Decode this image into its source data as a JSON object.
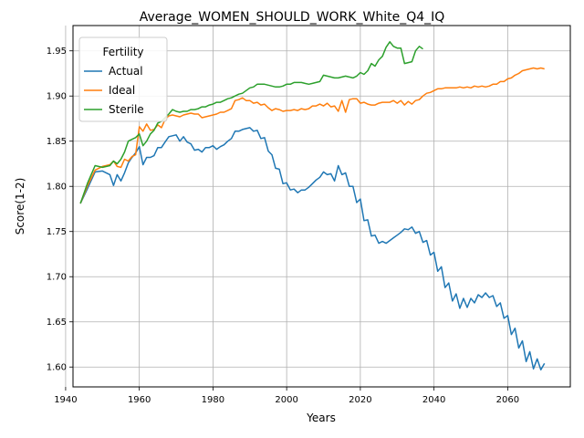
{
  "chart_data": {
    "type": "line",
    "title": "Average_WOMEN_SHOULD_WORK_White_Q4_IQ",
    "xlabel": "Years",
    "ylabel": "Score(1-2)",
    "xlim": [
      1942,
      2077
    ],
    "ylim": [
      1.578,
      1.978
    ],
    "xticks": [
      1940,
      1960,
      1980,
      2000,
      2020,
      2040,
      2060
    ],
    "yticks": [
      1.6,
      1.65,
      1.7,
      1.75,
      1.8,
      1.85,
      1.9,
      1.95
    ],
    "grid": true,
    "legend": {
      "title": "Fertility",
      "position": "upper-left"
    },
    "series": [
      {
        "name": "Actual",
        "color": "#1f77b4",
        "x": [
          1944,
          1946,
          1948,
          1950,
          1952,
          1953,
          1954,
          1955,
          1956,
          1957,
          1958,
          1959,
          1960,
          1961,
          1962,
          1963,
          1964,
          1965,
          1966,
          1967,
          1968,
          1969,
          1970,
          1971,
          1972,
          1973,
          1974,
          1975,
          1976,
          1977,
          1978,
          1979,
          1980,
          1981,
          1982,
          1983,
          1984,
          1985,
          1986,
          1987,
          1988,
          1989,
          1990,
          1991,
          1992,
          1993,
          1994,
          1995,
          1996,
          1997,
          1998,
          1999,
          2000,
          2001,
          2002,
          2003,
          2004,
          2005,
          2006,
          2007,
          2008,
          2009,
          2010,
          2011,
          2012,
          2013,
          2014,
          2015,
          2016,
          2017,
          2018,
          2019,
          2020,
          2021,
          2022,
          2023,
          2024,
          2025,
          2026,
          2027,
          2028,
          2029,
          2030,
          2031,
          2032,
          2033,
          2034,
          2035,
          2036,
          2037,
          2038,
          2039,
          2040,
          2041,
          2042,
          2043,
          2044,
          2045,
          2046,
          2047,
          2048,
          2049,
          2050,
          2051,
          2052,
          2053,
          2054,
          2055,
          2056,
          2057,
          2058,
          2059,
          2060,
          2061,
          2062,
          2063,
          2064,
          2065,
          2066,
          2067,
          2068,
          2069,
          2070
        ],
        "values": [
          1.781,
          1.798,
          1.816,
          1.817,
          1.813,
          1.801,
          1.813,
          1.806,
          1.815,
          1.826,
          1.832,
          1.837,
          1.844,
          1.824,
          1.832,
          1.832,
          1.834,
          1.843,
          1.843,
          1.849,
          1.855,
          1.856,
          1.857,
          1.85,
          1.855,
          1.849,
          1.847,
          1.84,
          1.841,
          1.838,
          1.843,
          1.843,
          1.845,
          1.841,
          1.844,
          1.846,
          1.85,
          1.853,
          1.861,
          1.861,
          1.863,
          1.864,
          1.865,
          1.861,
          1.862,
          1.853,
          1.854,
          1.839,
          1.835,
          1.82,
          1.819,
          1.803,
          1.804,
          1.796,
          1.797,
          1.793,
          1.796,
          1.796,
          1.799,
          1.803,
          1.807,
          1.81,
          1.816,
          1.813,
          1.814,
          1.806,
          1.823,
          1.813,
          1.815,
          1.8,
          1.8,
          1.782,
          1.786,
          1.762,
          1.763,
          1.745,
          1.746,
          1.737,
          1.739,
          1.737,
          1.74,
          1.743,
          1.746,
          1.749,
          1.753,
          1.752,
          1.755,
          1.748,
          1.75,
          1.738,
          1.74,
          1.724,
          1.727,
          1.706,
          1.711,
          1.688,
          1.693,
          1.673,
          1.681,
          1.665,
          1.676,
          1.666,
          1.676,
          1.671,
          1.68,
          1.677,
          1.682,
          1.677,
          1.679,
          1.667,
          1.671,
          1.654,
          1.657,
          1.636,
          1.643,
          1.621,
          1.629,
          1.606,
          1.617,
          1.598,
          1.609,
          1.597,
          1.604
        ]
      },
      {
        "name": "Ideal",
        "color": "#ff7f0e",
        "x": [
          1944,
          1946,
          1948,
          1950,
          1952,
          1953,
          1954,
          1955,
          1956,
          1957,
          1958,
          1959,
          1960,
          1961,
          1962,
          1963,
          1964,
          1965,
          1966,
          1967,
          1968,
          1969,
          1970,
          1971,
          1972,
          1973,
          1974,
          1975,
          1976,
          1977,
          1978,
          1979,
          1980,
          1981,
          1982,
          1983,
          1984,
          1985,
          1986,
          1987,
          1988,
          1989,
          1990,
          1991,
          1992,
          1993,
          1994,
          1995,
          1996,
          1997,
          1998,
          1999,
          2000,
          2001,
          2002,
          2003,
          2004,
          2005,
          2006,
          2007,
          2008,
          2009,
          2010,
          2011,
          2012,
          2013,
          2014,
          2015,
          2016,
          2017,
          2018,
          2019,
          2020,
          2021,
          2022,
          2023,
          2024,
          2025,
          2026,
          2027,
          2028,
          2029,
          2030,
          2031,
          2032,
          2033,
          2034,
          2035,
          2036,
          2037,
          2038,
          2039,
          2040,
          2041,
          2042,
          2043,
          2044,
          2045,
          2046,
          2047,
          2048,
          2049,
          2050,
          2051,
          2052,
          2053,
          2054,
          2055,
          2056,
          2057,
          2058,
          2059,
          2060,
          2061,
          2062,
          2063,
          2064,
          2065,
          2066,
          2067,
          2068,
          2069,
          2070
        ],
        "values": [
          1.781,
          1.801,
          1.818,
          1.822,
          1.824,
          1.828,
          1.822,
          1.821,
          1.83,
          1.828,
          1.833,
          1.835,
          1.866,
          1.861,
          1.869,
          1.862,
          1.863,
          1.868,
          1.865,
          1.874,
          1.878,
          1.879,
          1.878,
          1.877,
          1.879,
          1.88,
          1.881,
          1.88,
          1.88,
          1.876,
          1.877,
          1.878,
          1.879,
          1.88,
          1.882,
          1.882,
          1.884,
          1.886,
          1.895,
          1.896,
          1.898,
          1.895,
          1.895,
          1.892,
          1.893,
          1.89,
          1.891,
          1.887,
          1.884,
          1.886,
          1.885,
          1.883,
          1.884,
          1.884,
          1.885,
          1.884,
          1.886,
          1.885,
          1.886,
          1.889,
          1.889,
          1.891,
          1.889,
          1.892,
          1.888,
          1.889,
          1.883,
          1.895,
          1.882,
          1.896,
          1.897,
          1.897,
          1.892,
          1.893,
          1.891,
          1.89,
          1.89,
          1.892,
          1.893,
          1.893,
          1.893,
          1.895,
          1.892,
          1.895,
          1.89,
          1.894,
          1.891,
          1.895,
          1.896,
          1.9,
          1.903,
          1.904,
          1.906,
          1.908,
          1.908,
          1.909,
          1.909,
          1.909,
          1.909,
          1.91,
          1.909,
          1.91,
          1.909,
          1.911,
          1.91,
          1.911,
          1.91,
          1.911,
          1.913,
          1.913,
          1.916,
          1.916,
          1.919,
          1.92,
          1.923,
          1.925,
          1.928,
          1.929,
          1.93,
          1.931,
          1.93,
          1.931,
          1.93
        ]
      },
      {
        "name": "Sterile",
        "color": "#2ca02c",
        "x": [
          1944,
          1946,
          1948,
          1950,
          1952,
          1953,
          1954,
          1955,
          1956,
          1957,
          1958,
          1959,
          1960,
          1961,
          1962,
          1963,
          1964,
          1965,
          1966,
          1967,
          1968,
          1969,
          1970,
          1971,
          1972,
          1973,
          1974,
          1975,
          1976,
          1977,
          1978,
          1979,
          1980,
          1981,
          1982,
          1983,
          1984,
          1985,
          1986,
          1987,
          1988,
          1989,
          1990,
          1991,
          1992,
          1993,
          1994,
          1995,
          1996,
          1997,
          1998,
          1999,
          2000,
          2001,
          2002,
          2003,
          2004,
          2005,
          2006,
          2007,
          2008,
          2009,
          2010,
          2011,
          2012,
          2013,
          2014,
          2015,
          2016,
          2017,
          2018,
          2019,
          2020,
          2021,
          2022,
          2023,
          2024,
          2025,
          2026,
          2027,
          2028,
          2029,
          2030,
          2031,
          2032,
          2033,
          2034,
          2035,
          2036,
          2037
        ],
        "values": [
          1.781,
          1.804,
          1.823,
          1.821,
          1.823,
          1.828,
          1.825,
          1.83,
          1.838,
          1.85,
          1.852,
          1.854,
          1.858,
          1.845,
          1.85,
          1.858,
          1.862,
          1.87,
          1.872,
          1.876,
          1.88,
          1.885,
          1.883,
          1.882,
          1.883,
          1.883,
          1.885,
          1.885,
          1.886,
          1.888,
          1.888,
          1.89,
          1.891,
          1.893,
          1.893,
          1.895,
          1.897,
          1.898,
          1.9,
          1.902,
          1.903,
          1.906,
          1.909,
          1.91,
          1.913,
          1.913,
          1.913,
          1.912,
          1.911,
          1.91,
          1.91,
          1.911,
          1.913,
          1.913,
          1.915,
          1.915,
          1.915,
          1.914,
          1.913,
          1.914,
          1.915,
          1.916,
          1.923,
          1.922,
          1.921,
          1.92,
          1.92,
          1.921,
          1.922,
          1.921,
          1.92,
          1.922,
          1.926,
          1.924,
          1.928,
          1.936,
          1.933,
          1.94,
          1.944,
          1.954,
          1.96,
          1.955,
          1.953,
          1.953,
          1.936,
          1.937,
          1.938,
          1.95,
          1.955,
          1.952
        ]
      }
    ]
  }
}
